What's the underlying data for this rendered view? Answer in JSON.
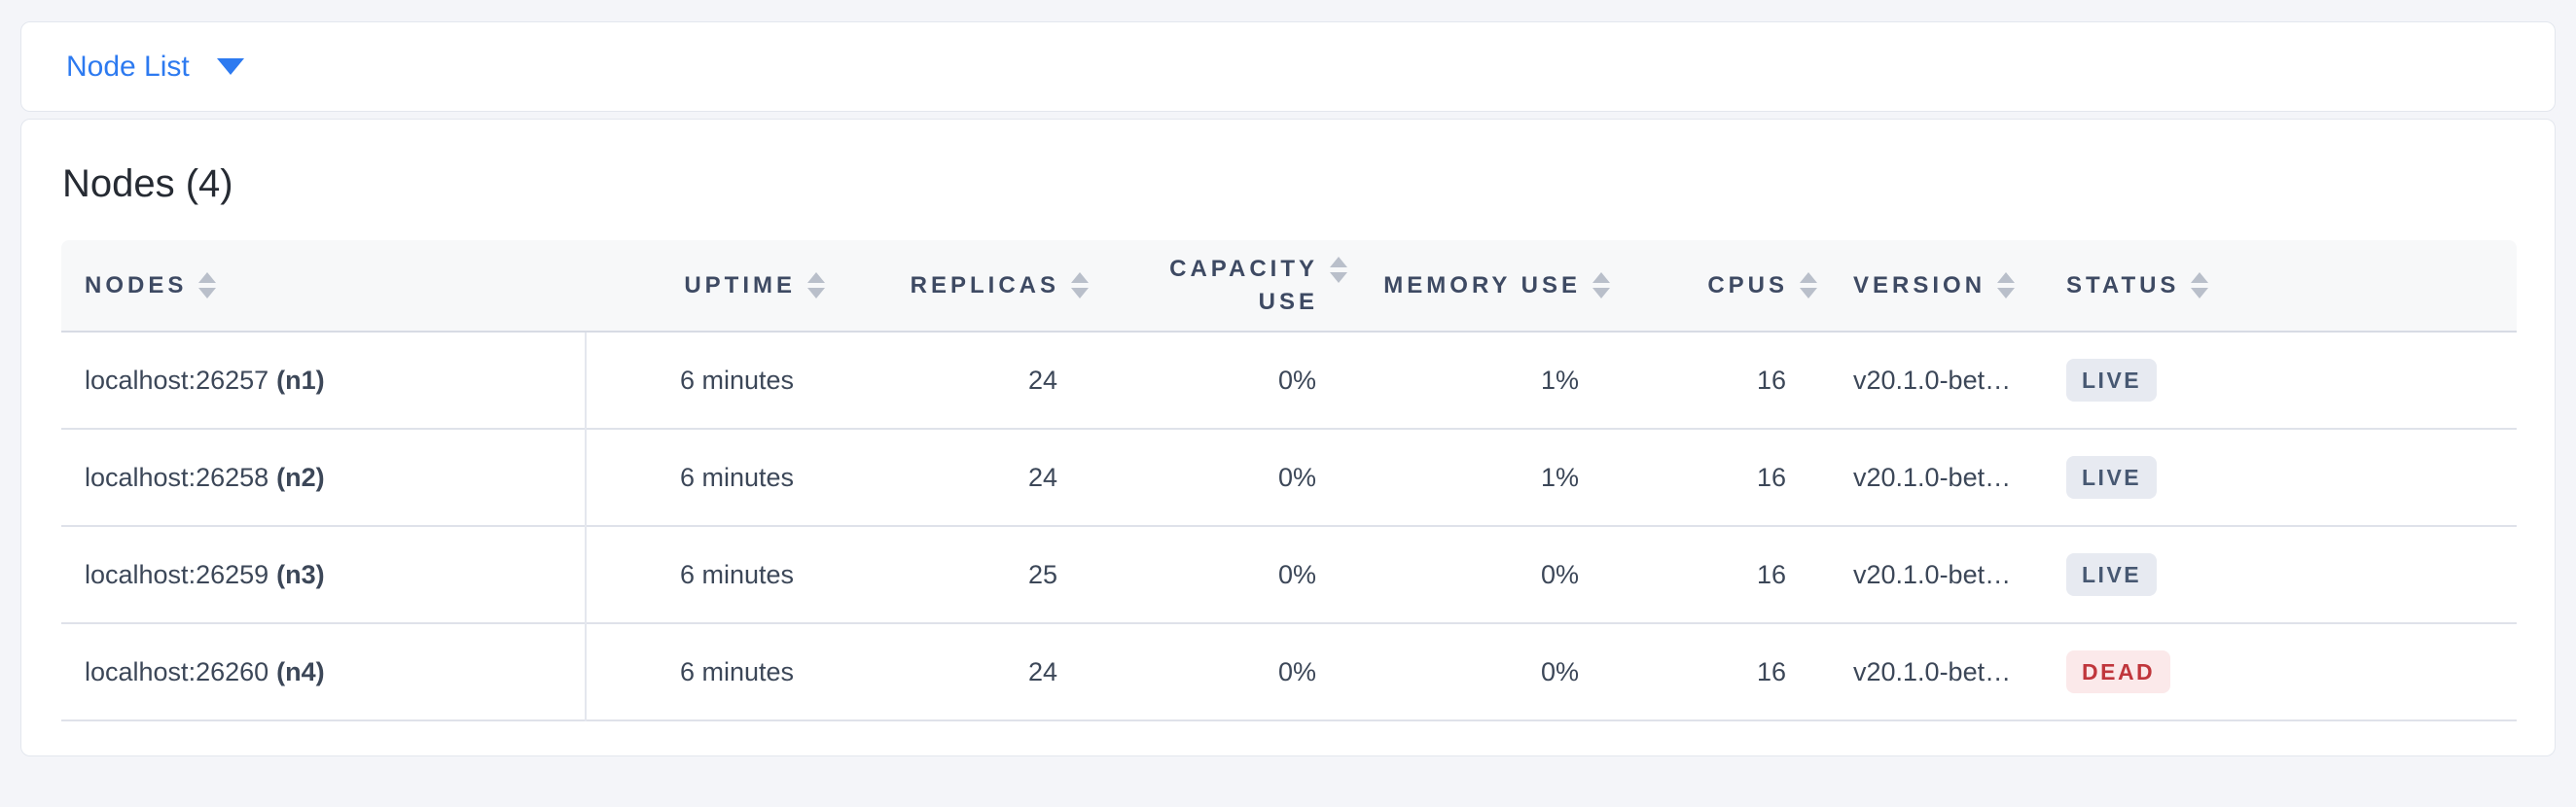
{
  "view_selector": {
    "label": "Node List",
    "icon": "caret-down-icon"
  },
  "panel": {
    "title": "Nodes (4)",
    "node_count": 4
  },
  "table": {
    "headers": [
      {
        "label": "NODES",
        "align": "left",
        "sort_icon": "sort-arrows-icon"
      },
      {
        "label": "UPTIME",
        "align": "right",
        "sort_icon": "sort-arrows-icon"
      },
      {
        "label": "REPLICAS",
        "align": "right",
        "sort_icon": "sort-arrows-icon"
      },
      {
        "label": "CAPACITY USE",
        "align": "right",
        "sort_icon": "sort-arrows-icon"
      },
      {
        "label": "MEMORY USE",
        "align": "right",
        "sort_icon": "sort-arrows-icon"
      },
      {
        "label": "CPUS",
        "align": "right",
        "sort_icon": "sort-arrows-icon"
      },
      {
        "label": "VERSION",
        "align": "left",
        "sort_icon": "sort-arrows-icon"
      },
      {
        "label": "STATUS",
        "align": "left",
        "sort_icon": "sort-arrows-icon"
      }
    ],
    "rows": [
      {
        "address": "localhost:26257",
        "id": "(n1)",
        "uptime": "6 minutes",
        "replicas": "24",
        "capacity_use": "0%",
        "memory_use": "1%",
        "cpus": "16",
        "version": "v20.1.0-bet…",
        "status": "LIVE"
      },
      {
        "address": "localhost:26258",
        "id": "(n2)",
        "uptime": "6 minutes",
        "replicas": "24",
        "capacity_use": "0%",
        "memory_use": "1%",
        "cpus": "16",
        "version": "v20.1.0-bet…",
        "status": "LIVE"
      },
      {
        "address": "localhost:26259",
        "id": "(n3)",
        "uptime": "6 minutes",
        "replicas": "25",
        "capacity_use": "0%",
        "memory_use": "0%",
        "cpus": "16",
        "version": "v20.1.0-bet…",
        "status": "LIVE"
      },
      {
        "address": "localhost:26260",
        "id": "(n4)",
        "uptime": "6 minutes",
        "replicas": "24",
        "capacity_use": "0%",
        "memory_use": "0%",
        "cpus": "16",
        "version": "v20.1.0-bet…",
        "status": "DEAD"
      }
    ]
  },
  "colors": {
    "page_background": "#f4f5f9",
    "accent_blue": "#2d7af0",
    "header_text": "#3e4a63",
    "cell_text": "#3c4758",
    "header_background": "#f7f8f9",
    "live_badge_background": "#e7eaf1",
    "live_badge_text": "#475872",
    "dead_badge_background": "#fbe9ea",
    "dead_badge_text": "#c0363c"
  }
}
